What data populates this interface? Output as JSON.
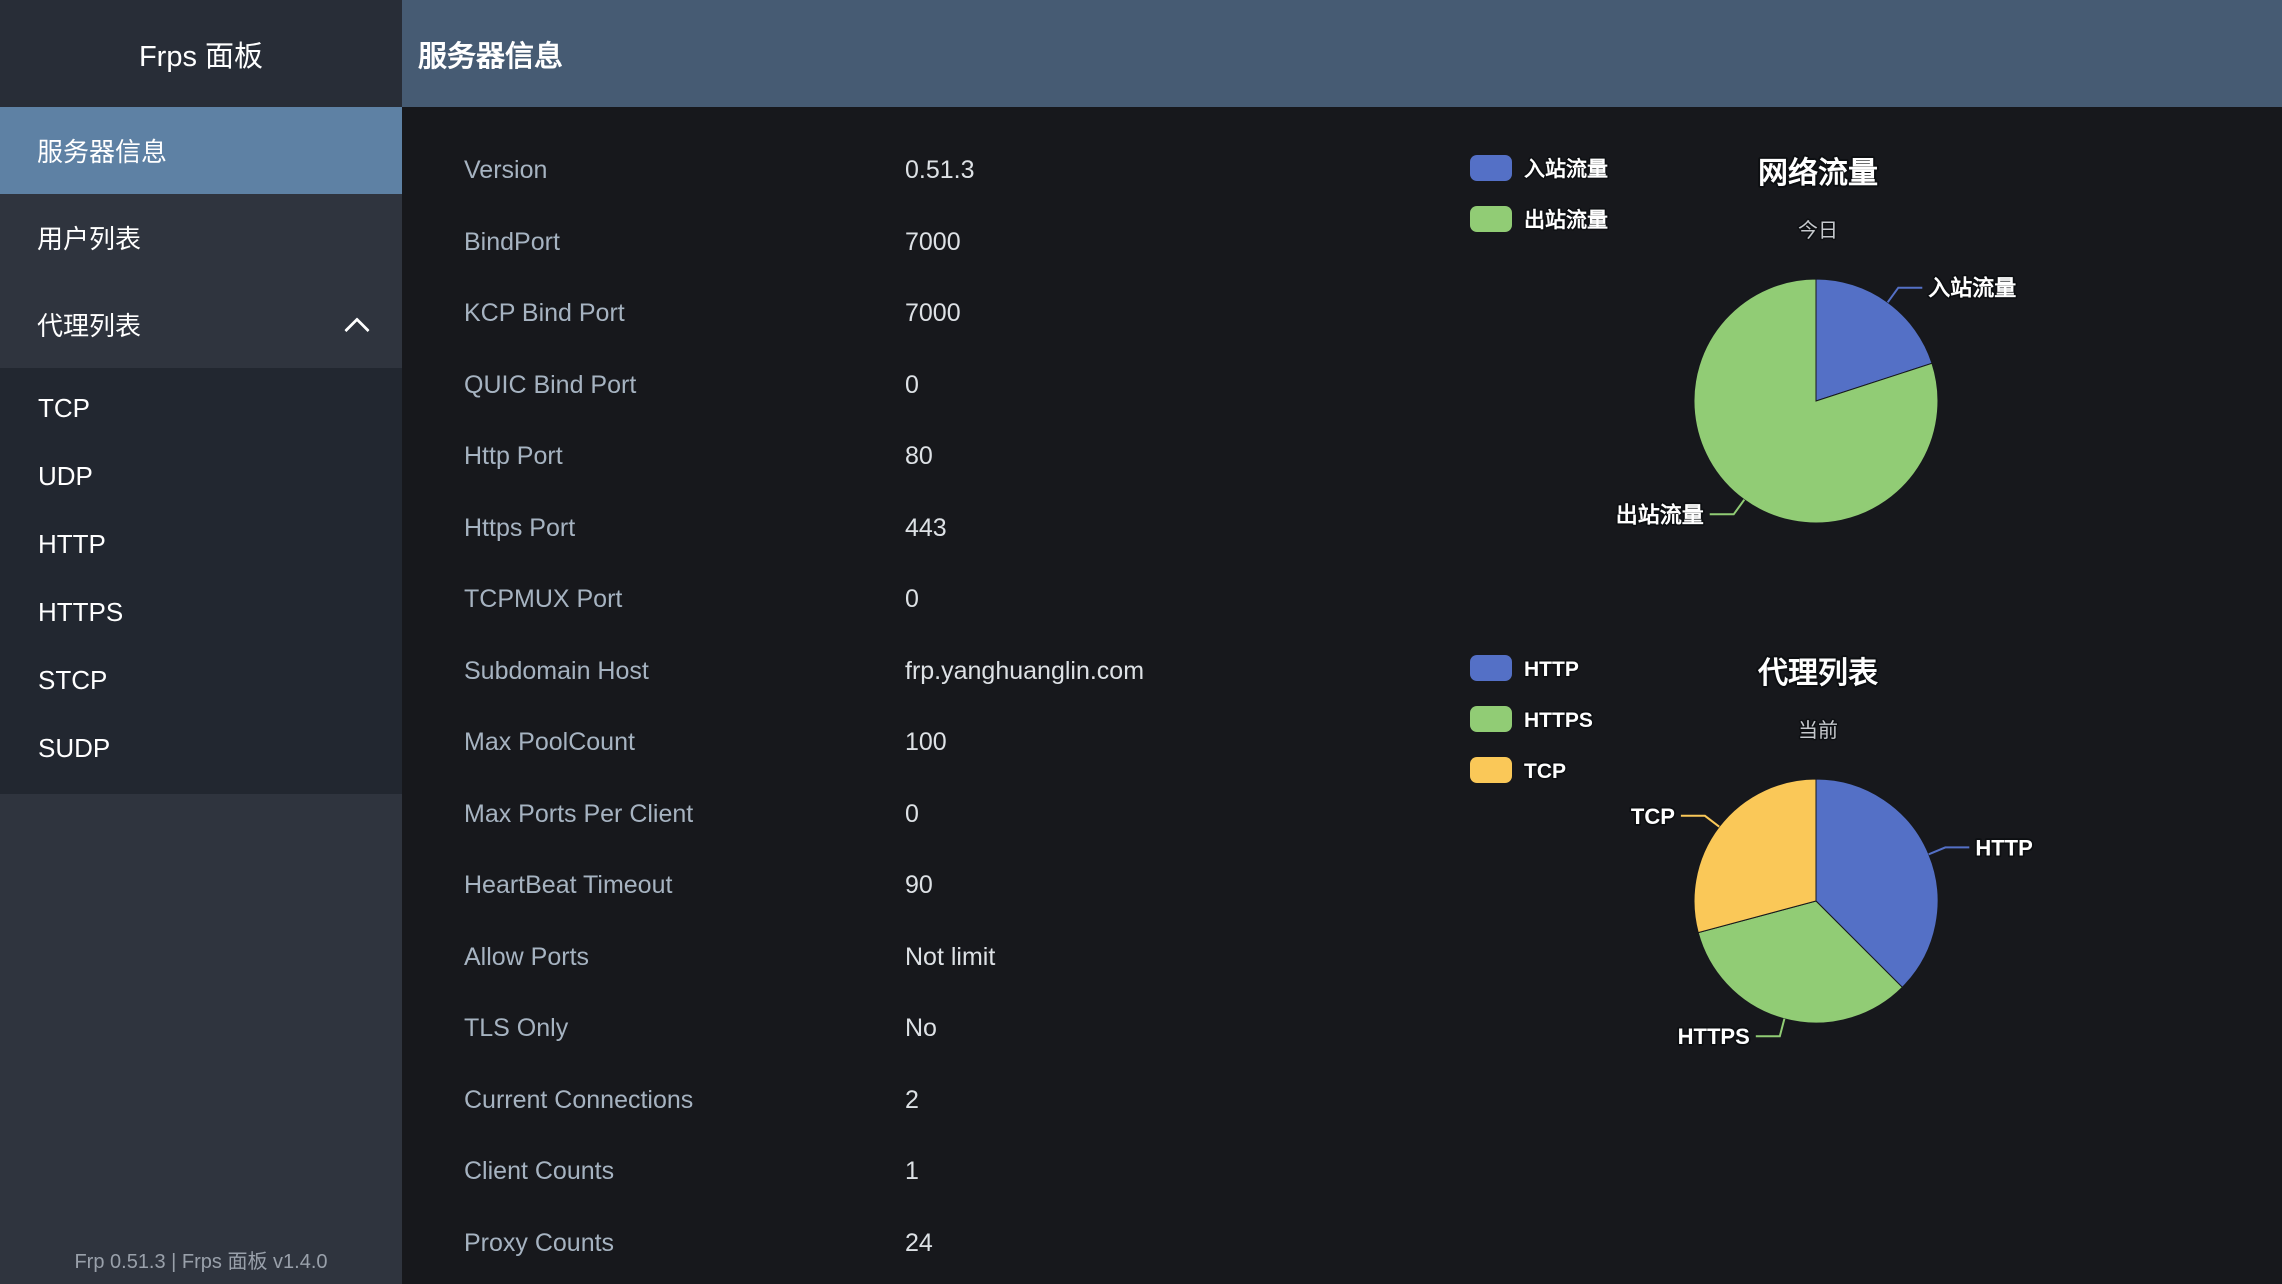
{
  "app": {
    "sidebar_title": "Frps 面板",
    "footer": "Frp 0.51.3 | Frps 面板 v1.4.0"
  },
  "sidebar": {
    "items": [
      {
        "label": "服务器信息",
        "selected": true
      },
      {
        "label": "用户列表",
        "selected": false
      },
      {
        "label": "代理列表",
        "selected": false,
        "expanded": true,
        "children": [
          "TCP",
          "UDP",
          "HTTP",
          "HTTPS",
          "STCP",
          "SUDP"
        ]
      }
    ]
  },
  "header": {
    "title": "服务器信息"
  },
  "server_info": {
    "rows": [
      {
        "label": "Version",
        "value": "0.51.3"
      },
      {
        "label": "BindPort",
        "value": "7000"
      },
      {
        "label": "KCP Bind Port",
        "value": "7000"
      },
      {
        "label": "QUIC Bind Port",
        "value": "0"
      },
      {
        "label": "Http Port",
        "value": "80"
      },
      {
        "label": "Https Port",
        "value": "443"
      },
      {
        "label": "TCPMUX Port",
        "value": "0"
      },
      {
        "label": "Subdomain Host",
        "value": "frp.yanghuanglin.com"
      },
      {
        "label": "Max PoolCount",
        "value": "100"
      },
      {
        "label": "Max Ports Per Client",
        "value": "0"
      },
      {
        "label": "HeartBeat Timeout",
        "value": "90"
      },
      {
        "label": "Allow Ports",
        "value": "Not limit"
      },
      {
        "label": "TLS Only",
        "value": "No"
      },
      {
        "label": "Current Connections",
        "value": "2"
      },
      {
        "label": "Client Counts",
        "value": "1"
      },
      {
        "label": "Proxy Counts",
        "value": "24"
      }
    ]
  },
  "chart_data": [
    {
      "type": "pie",
      "title": "网络流量",
      "subtitle": "今日",
      "legend_position": "top-left",
      "title_position": "top-center",
      "labels": "outside with leader lines",
      "values_unit": "percent (estimated from slice angles)",
      "series": [
        {
          "name": "入站流量",
          "value": 20,
          "color": "#5470c6"
        },
        {
          "name": "出站流量",
          "value": 80,
          "color": "#91cc75"
        }
      ]
    },
    {
      "type": "pie",
      "title": "代理列表",
      "subtitle": "当前",
      "legend_position": "top-left",
      "title_position": "top-center",
      "labels": "outside with leader lines",
      "values_unit": "proxy count",
      "series": [
        {
          "name": "HTTP",
          "value": 9,
          "color": "#5470c6"
        },
        {
          "name": "HTTPS",
          "value": 8,
          "color": "#91cc75"
        },
        {
          "name": "TCP",
          "value": 7,
          "color": "#fac858"
        }
      ]
    }
  ],
  "colors": {
    "content_bg": "#17181c",
    "sidebar_bg": "#2f343e",
    "sidebar_title_bg": "#282d37",
    "sidebar_selected_bg": "#5e81a4",
    "submenu_bg": "#222730",
    "header_bg": "#465b73",
    "label_text": "#a6b3c1",
    "value_text": "#dde1e5",
    "pie_blue": "#5470c6",
    "pie_green": "#91cc75",
    "pie_yellow": "#fac858"
  }
}
